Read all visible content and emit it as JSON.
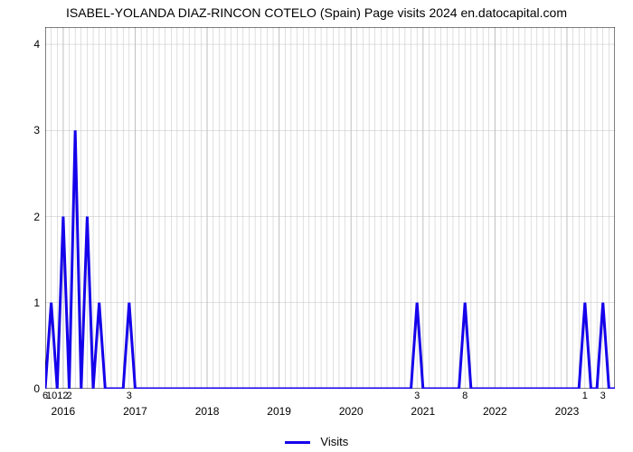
{
  "chart": {
    "type": "line",
    "title": "ISABEL-YOLANDA DIAZ-RINCON COTELO (Spain) Page visits 2024 en.datocapital.com",
    "title_fontsize": 14,
    "title_color": "#000000",
    "background_color": "#ffffff",
    "plot_background": "#ffffff",
    "grid_color": "#c0c0c0",
    "grid_width": 0.5,
    "axis_color": "#000000",
    "line_color": "#1500ea",
    "line_width": 3,
    "ylim": [
      0,
      4.2
    ],
    "yticks": [
      0,
      1,
      2,
      3,
      4
    ],
    "x_count": 96,
    "x_year_ticks": [
      {
        "idx": 3,
        "label": "2016"
      },
      {
        "idx": 15,
        "label": "2017"
      },
      {
        "idx": 27,
        "label": "2018"
      },
      {
        "idx": 39,
        "label": "2019"
      },
      {
        "idx": 51,
        "label": "2020"
      },
      {
        "idx": 63,
        "label": "2021"
      },
      {
        "idx": 75,
        "label": "2022"
      },
      {
        "idx": 87,
        "label": "2023"
      }
    ],
    "below_labels": [
      {
        "idx": 0,
        "text": "6"
      },
      {
        "idx": 2,
        "text": "1012"
      },
      {
        "idx": 4,
        "text": "2"
      },
      {
        "idx": 14,
        "text": "3"
      },
      {
        "idx": 62,
        "text": "3"
      },
      {
        "idx": 70,
        "text": "8"
      },
      {
        "idx": 90,
        "text": "1"
      },
      {
        "idx": 93,
        "text": "3"
      }
    ],
    "values": [
      0,
      1,
      0,
      2,
      0,
      3,
      0,
      2,
      0,
      1,
      0,
      0,
      0,
      0,
      1,
      0,
      0,
      0,
      0,
      0,
      0,
      0,
      0,
      0,
      0,
      0,
      0,
      0,
      0,
      0,
      0,
      0,
      0,
      0,
      0,
      0,
      0,
      0,
      0,
      0,
      0,
      0,
      0,
      0,
      0,
      0,
      0,
      0,
      0,
      0,
      0,
      0,
      0,
      0,
      0,
      0,
      0,
      0,
      0,
      0,
      0,
      0,
      1,
      0,
      0,
      0,
      0,
      0,
      0,
      0,
      1,
      0,
      0,
      0,
      0,
      0,
      0,
      0,
      0,
      0,
      0,
      0,
      0,
      0,
      0,
      0,
      0,
      0,
      0,
      0,
      1,
      0,
      0,
      1,
      0,
      0
    ],
    "legend_label": "Visits"
  }
}
